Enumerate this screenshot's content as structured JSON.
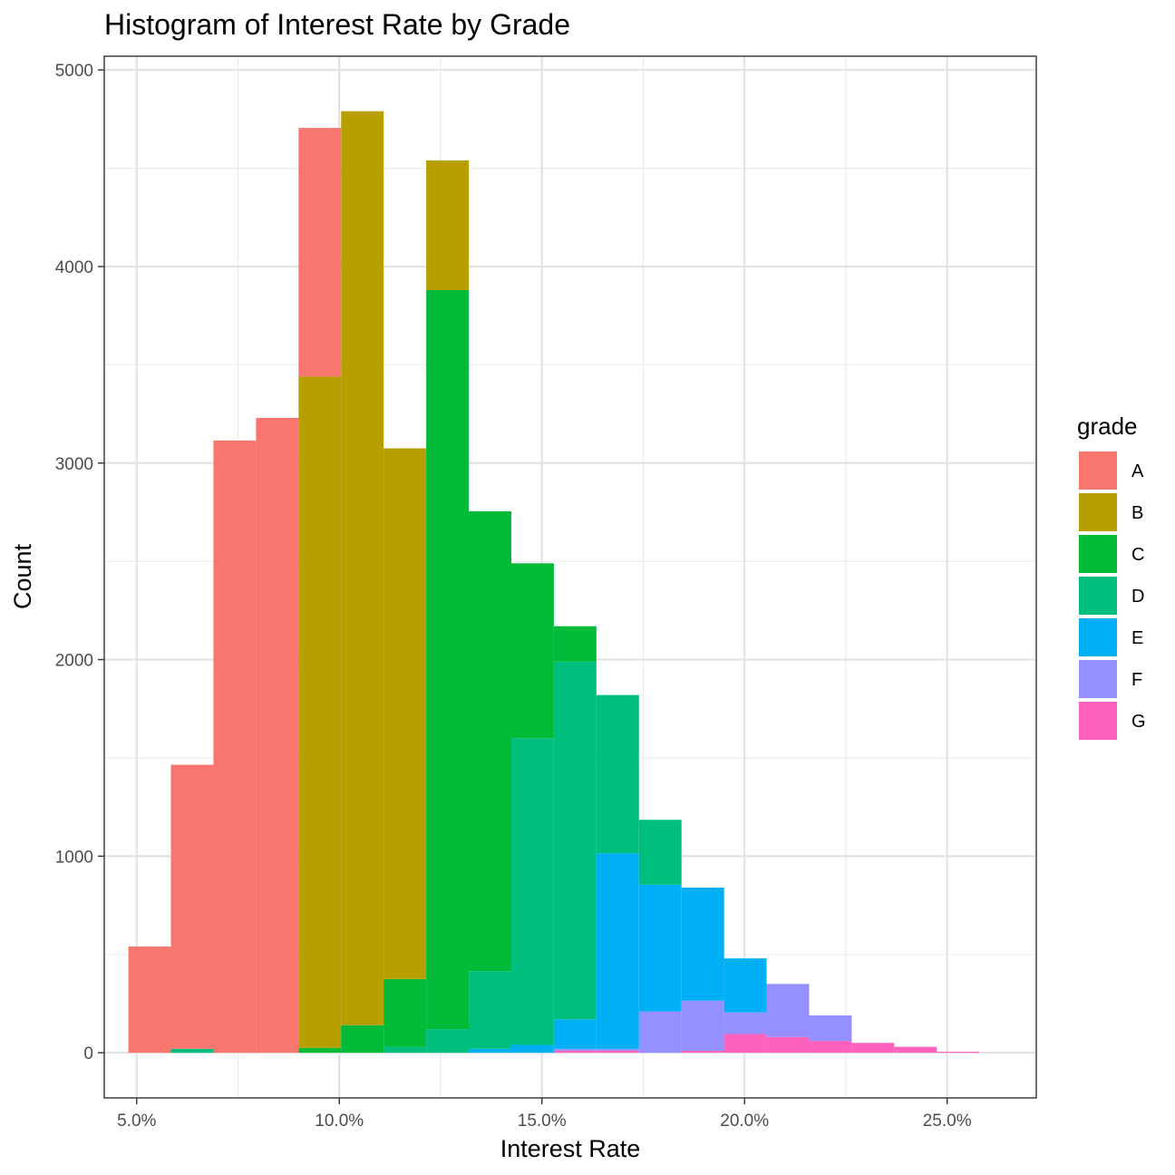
{
  "chart_data": {
    "type": "bar",
    "subtype": "stacked-histogram",
    "title": "Histogram of Interest Rate by Grade",
    "xlabel": "Interest Rate",
    "ylabel": "Count",
    "xlim": [
      4.2,
      27.2
    ],
    "ylim": [
      -230,
      5070
    ],
    "x_ticks": [
      5,
      10,
      15,
      20,
      25
    ],
    "x_tick_labels": [
      "5.0%",
      "10.0%",
      "15.0%",
      "20.0%",
      "25.0%"
    ],
    "y_ticks": [
      0,
      1000,
      2000,
      3000,
      4000,
      5000
    ],
    "y_tick_labels": [
      "0",
      "1000",
      "2000",
      "3000",
      "4000",
      "5000"
    ],
    "grid": true,
    "legend": {
      "title": "grade",
      "position": "right"
    },
    "bin_width": 1.05,
    "bins": [
      5.32,
      6.37,
      7.42,
      8.47,
      9.52,
      10.57,
      11.62,
      12.67,
      13.72,
      14.77,
      15.82,
      16.87,
      17.92,
      18.97,
      20.02,
      21.07,
      22.12,
      23.17,
      24.22,
      25.27
    ],
    "series": [
      {
        "name": "A",
        "color": "#F8766D",
        "values": [
          540,
          1445,
          3115,
          3230,
          1265,
          0,
          0,
          0,
          0,
          0,
          0,
          0,
          0,
          0,
          0,
          0,
          0,
          0,
          0,
          0
        ]
      },
      {
        "name": "B",
        "color": "#B79F00",
        "values": [
          0,
          0,
          0,
          0,
          3415,
          4650,
          2700,
          660,
          0,
          0,
          0,
          0,
          0,
          0,
          0,
          0,
          0,
          0,
          0,
          0
        ]
      },
      {
        "name": "C",
        "color": "#00BA38",
        "values": [
          0,
          0,
          0,
          0,
          25,
          140,
          345,
          3760,
          2340,
          890,
          180,
          0,
          0,
          0,
          0,
          0,
          0,
          0,
          0,
          0
        ]
      },
      {
        "name": "D",
        "color": "#00BF7D",
        "values": [
          0,
          20,
          0,
          0,
          0,
          0,
          30,
          120,
          395,
          1560,
          1820,
          805,
          330,
          0,
          0,
          0,
          0,
          0,
          0,
          0
        ]
      },
      {
        "name": "E",
        "color": "#00B0F6",
        "values": [
          0,
          0,
          0,
          0,
          0,
          0,
          0,
          0,
          20,
          40,
          150,
          995,
          645,
          575,
          275,
          0,
          0,
          0,
          0,
          0
        ]
      },
      {
        "name": "F",
        "color": "#9590FF",
        "values": [
          0,
          0,
          0,
          0,
          0,
          0,
          0,
          0,
          0,
          0,
          10,
          10,
          210,
          255,
          110,
          270,
          130,
          0,
          0,
          0
        ]
      },
      {
        "name": "G",
        "color": "#FF62BC",
        "values": [
          0,
          0,
          0,
          0,
          0,
          0,
          0,
          0,
          0,
          0,
          10,
          10,
          0,
          10,
          95,
          80,
          60,
          50,
          30,
          5
        ]
      }
    ]
  }
}
